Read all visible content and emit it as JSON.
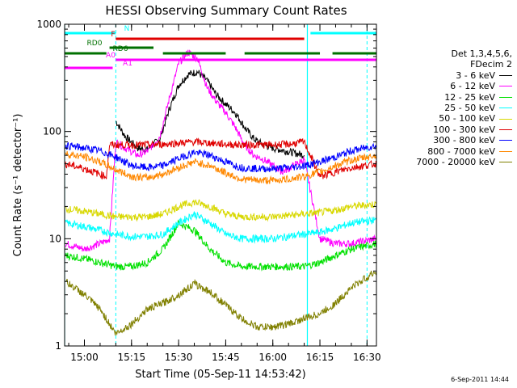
{
  "title": "HESSI Observing Summary Count Rates",
  "xlabel": "Start Time (05-Sep-11 14:53:42)",
  "ylabel": "Count Rate (s⁻¹ detector⁻¹)",
  "generated_on": "6-Sep-2011 14:44",
  "legend": {
    "header_line1": "Det 1,3,4,5,6,",
    "header_line2": "FDecim 2",
    "entries": [
      {
        "label": "3 - 6 keV",
        "color": "#000000"
      },
      {
        "label": "6 - 12 keV",
        "color": "#ff00ff"
      },
      {
        "label": "12 - 25 keV",
        "color": "#00e000"
      },
      {
        "label": "25 - 50 keV",
        "color": "#00ffff"
      },
      {
        "label": "50 - 100 keV",
        "color": "#d8d800"
      },
      {
        "label": "100 - 300 keV",
        "color": "#e00000"
      },
      {
        "label": "300 - 800 keV",
        "color": "#0000ff"
      },
      {
        "label": "800 - 7000 keV",
        "color": "#ff8800"
      },
      {
        "label": "7000 - 20000 keV",
        "color": "#808000"
      }
    ]
  },
  "flags": [
    {
      "label": "N",
      "color": "#00ffff",
      "segments": [
        [
          "14:53:42",
          "15:10"
        ],
        [
          "16:12",
          "16:33"
        ]
      ]
    },
    {
      "label": "F",
      "color": "#e00000",
      "segments": [
        [
          "15:10",
          "16:10"
        ]
      ]
    },
    {
      "label": "RD0",
      "color": "#007000",
      "segments": [
        [
          "15:08",
          "15:22"
        ]
      ]
    },
    {
      "label": "RD6",
      "color": "#007000",
      "segments": [
        [
          "14:53:42",
          "15:07"
        ],
        [
          "15:25",
          "15:45"
        ],
        [
          "15:51",
          "16:15"
        ],
        [
          "16:19",
          "16:33"
        ]
      ]
    },
    {
      "label": "A0",
      "color": "#ff00ff",
      "segments": [
        [
          "15:10",
          "16:33"
        ]
      ]
    },
    {
      "label": "A1",
      "color": "#ff00ff",
      "segments": [
        [
          "14:53:42",
          "15:09"
        ]
      ]
    }
  ],
  "night_markers": {
    "color": "#00ffff",
    "solid": [
      "14:53:42",
      "16:11"
    ],
    "dashed": [
      "15:10",
      "16:30"
    ]
  },
  "chart_data": {
    "type": "line",
    "title": "HESSI Observing Summary Count Rates",
    "xlabel": "Start Time (05-Sep-11 14:53:42)",
    "ylabel": "Count Rate (s⁻¹ detector⁻¹)",
    "xlim": [
      "14:53:42",
      "16:33"
    ],
    "ylim": [
      1,
      1000
    ],
    "ylog": true,
    "x_ticks": [
      "15:00",
      "15:15",
      "15:30",
      "15:45",
      "16:00",
      "16:15",
      "16:30"
    ],
    "y_ticks": [
      "1",
      "10",
      "100",
      "1000"
    ],
    "series": [
      {
        "name": "3 - 6 keV",
        "color": "#000000",
        "x": [
          "15:10",
          "15:13",
          "15:17",
          "15:20",
          "15:24",
          "15:27",
          "15:30",
          "15:33",
          "15:36",
          "15:39",
          "15:42",
          "15:45",
          "15:48",
          "15:51",
          "15:54",
          "15:57",
          "16:00",
          "16:05",
          "16:10"
        ],
        "y": [
          125,
          90,
          70,
          68,
          85,
          160,
          270,
          340,
          360,
          300,
          220,
          180,
          150,
          110,
          85,
          75,
          70,
          65,
          60
        ]
      },
      {
        "name": "6 - 12 keV",
        "color": "#ff00ff",
        "x": [
          "14:54",
          "15:00",
          "15:05",
          "15:08",
          "15:10",
          "15:13",
          "15:17",
          "15:20",
          "15:24",
          "15:27",
          "15:30",
          "15:33",
          "15:36",
          "15:39",
          "15:42",
          "15:45",
          "15:48",
          "15:51",
          "15:54",
          "15:57",
          "16:00",
          "16:03",
          "16:05",
          "16:10",
          "16:15",
          "16:20",
          "16:25",
          "16:33"
        ],
        "y": [
          9,
          8,
          9,
          10,
          80,
          70,
          60,
          65,
          90,
          200,
          430,
          550,
          480,
          260,
          190,
          150,
          110,
          75,
          60,
          55,
          48,
          42,
          45,
          55,
          10,
          9,
          9,
          10
        ]
      },
      {
        "name": "12 - 25 keV",
        "color": "#00e000",
        "x": [
          "14:54",
          "15:00",
          "15:05",
          "15:10",
          "15:15",
          "15:20",
          "15:25",
          "15:30",
          "15:35",
          "15:40",
          "15:45",
          "15:50",
          "15:55",
          "16:00",
          "16:05",
          "16:10",
          "16:15",
          "16:20",
          "16:25",
          "16:33"
        ],
        "y": [
          7,
          6.5,
          6,
          5.5,
          5.5,
          6,
          8,
          14,
          12,
          8,
          6,
          5.5,
          5.5,
          5.5,
          5.5,
          5.5,
          6,
          7,
          8,
          9
        ]
      },
      {
        "name": "25 - 50 keV",
        "color": "#00ffff",
        "x": [
          "14:54",
          "15:00",
          "15:05",
          "15:10",
          "15:15",
          "15:20",
          "15:25",
          "15:30",
          "15:35",
          "15:40",
          "15:45",
          "15:50",
          "15:55",
          "16:00",
          "16:05",
          "16:10",
          "16:15",
          "16:20",
          "16:25",
          "16:33"
        ],
        "y": [
          14,
          13,
          12,
          11,
          10.5,
          10.5,
          11,
          14,
          17,
          14,
          11,
          10,
          10,
          10,
          10.5,
          11,
          11.5,
          12.5,
          14,
          15
        ]
      },
      {
        "name": "50 - 100 keV",
        "color": "#d8d800",
        "x": [
          "14:54",
          "15:00",
          "15:05",
          "15:10",
          "15:15",
          "15:20",
          "15:25",
          "15:30",
          "15:35",
          "15:40",
          "15:45",
          "15:50",
          "15:55",
          "16:00",
          "16:05",
          "16:10",
          "16:15",
          "16:20",
          "16:25",
          "16:33"
        ],
        "y": [
          19,
          18,
          17,
          16,
          16,
          16,
          17,
          20,
          22,
          20,
          17,
          16,
          16,
          16,
          16.5,
          17,
          17.5,
          18.5,
          20,
          21
        ]
      },
      {
        "name": "100 - 300 keV",
        "color": "#e00000",
        "x": [
          "14:54",
          "15:00",
          "15:05",
          "15:07",
          "15:08",
          "15:10",
          "15:15",
          "15:20",
          "15:25",
          "15:30",
          "15:35",
          "15:40",
          "15:45",
          "15:50",
          "15:55",
          "16:00",
          "16:05",
          "16:10",
          "16:15",
          "16:20",
          "16:25",
          "16:33"
        ],
        "y": [
          50,
          45,
          40,
          38,
          75,
          75,
          75,
          75,
          76,
          78,
          80,
          78,
          76,
          75,
          75,
          75,
          76,
          80,
          38,
          42,
          46,
          50
        ]
      },
      {
        "name": "300 - 800 keV",
        "color": "#0000ff",
        "x": [
          "14:54",
          "15:00",
          "15:05",
          "15:10",
          "15:15",
          "15:20",
          "15:25",
          "15:30",
          "15:35",
          "15:40",
          "15:45",
          "15:50",
          "15:55",
          "16:00",
          "16:05",
          "16:10",
          "16:15",
          "16:20",
          "16:25",
          "16:33"
        ],
        "y": [
          74,
          70,
          66,
          58,
          48,
          46,
          48,
          56,
          64,
          60,
          52,
          46,
          45,
          45,
          46,
          48,
          52,
          58,
          66,
          74
        ]
      },
      {
        "name": "800 - 7000 keV",
        "color": "#ff8800",
        "x": [
          "14:54",
          "15:00",
          "15:05",
          "15:10",
          "15:15",
          "15:20",
          "15:25",
          "15:30",
          "15:35",
          "15:40",
          "15:45",
          "15:50",
          "15:55",
          "16:00",
          "16:05",
          "16:10",
          "16:15",
          "16:20",
          "16:25",
          "16:33"
        ],
        "y": [
          62,
          58,
          52,
          44,
          38,
          37,
          40,
          46,
          52,
          48,
          41,
          36,
          35,
          35,
          36,
          38,
          42,
          48,
          54,
          60
        ]
      },
      {
        "name": "7000 - 20000 keV",
        "color": "#808000",
        "x": [
          "14:54",
          "15:00",
          "15:05",
          "15:10",
          "15:15",
          "15:20",
          "15:25",
          "15:30",
          "15:35",
          "15:40",
          "15:45",
          "15:50",
          "15:55",
          "16:00",
          "16:05",
          "16:10",
          "16:15",
          "16:20",
          "16:25",
          "16:33"
        ],
        "y": [
          4,
          3,
          2.2,
          1.3,
          1.6,
          2.2,
          2.5,
          3,
          3.8,
          3.2,
          2.4,
          1.8,
          1.5,
          1.5,
          1.6,
          1.8,
          2,
          2.5,
          3.5,
          5
        ]
      }
    ],
    "legend_position": "right",
    "grid": false
  }
}
